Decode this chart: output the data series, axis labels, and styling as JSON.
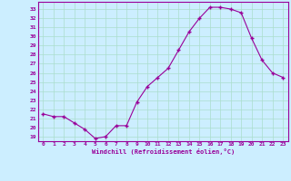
{
  "x": [
    0,
    1,
    2,
    3,
    4,
    5,
    6,
    7,
    8,
    9,
    10,
    11,
    12,
    13,
    14,
    15,
    16,
    17,
    18,
    19,
    20,
    21,
    22,
    23
  ],
  "y": [
    21.5,
    21.2,
    21.2,
    20.5,
    19.8,
    18.8,
    19.0,
    20.2,
    20.2,
    22.8,
    24.5,
    25.5,
    26.5,
    28.5,
    30.5,
    32.0,
    33.2,
    33.2,
    33.0,
    32.6,
    29.8,
    27.4,
    26.0,
    25.5
  ],
  "line_color": "#990099",
  "marker": "+",
  "marker_size": 3,
  "bg_color": "#cceeff",
  "grid_color": "#aaddcc",
  "xlabel": "Windchill (Refroidissement éolien,°C)",
  "ylabel_ticks": [
    19,
    20,
    21,
    22,
    23,
    24,
    25,
    26,
    27,
    28,
    29,
    30,
    31,
    32,
    33
  ],
  "ylim": [
    18.5,
    33.8
  ],
  "xlim": [
    -0.5,
    23.5
  ]
}
